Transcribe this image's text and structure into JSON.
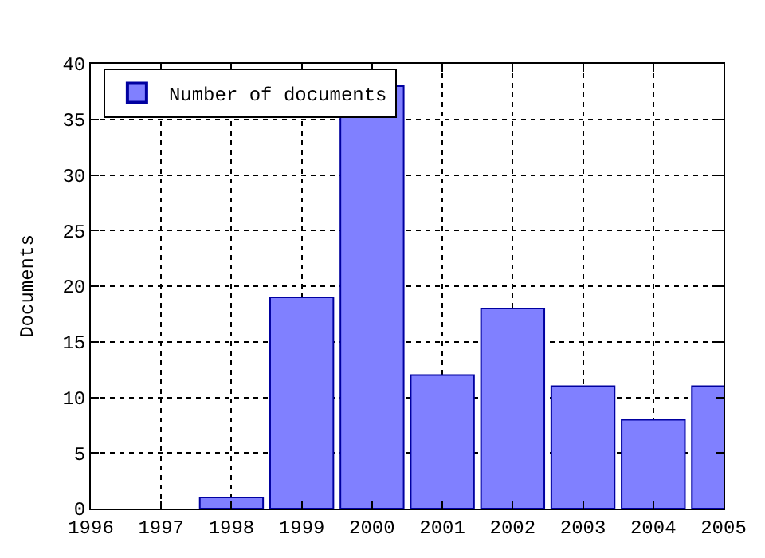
{
  "chart_data": {
    "type": "bar",
    "ylabel": "Documents",
    "x": [
      1998,
      1999,
      2000,
      2001,
      2002,
      2003,
      2004,
      2005
    ],
    "series": [
      {
        "name": "Number of documents",
        "color": "#8080ff",
        "values": [
          1,
          19,
          38,
          12,
          18,
          11,
          8,
          11
        ]
      }
    ],
    "xlim": [
      1996,
      2005
    ],
    "xticks": [
      1996,
      1997,
      1998,
      1999,
      2000,
      2001,
      2002,
      2003,
      2004,
      2005
    ],
    "ylim": [
      0,
      40
    ],
    "yticks": [
      0,
      5,
      10,
      15,
      20,
      25,
      30,
      35,
      40
    ],
    "grid": true,
    "legend": "top left"
  }
}
